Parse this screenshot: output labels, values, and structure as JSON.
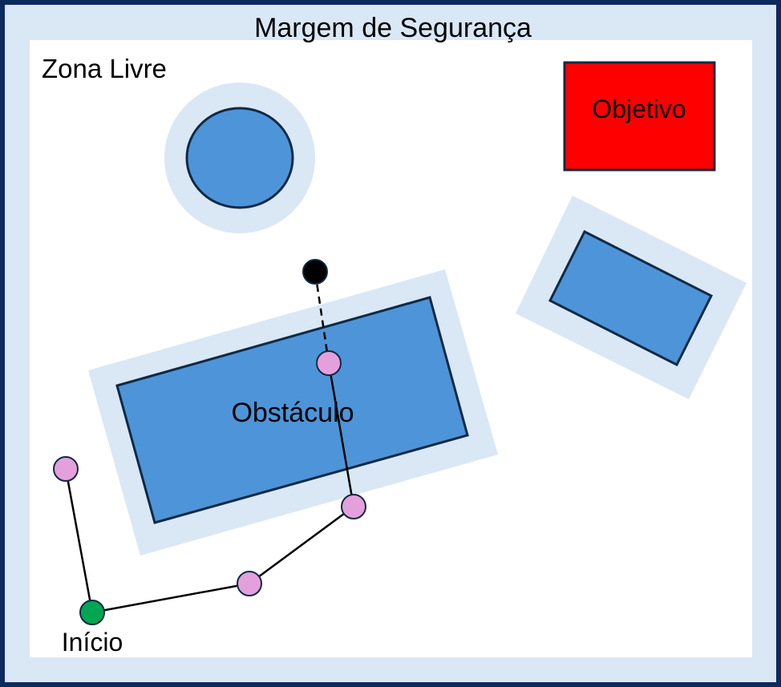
{
  "labels": {
    "safety_margin": "Margem de Segurança",
    "free_zone": "Zona Livre",
    "goal": "Objetivo",
    "obstacle": "Obstáculo",
    "start": "Início"
  },
  "colors": {
    "frame_border": "#0d2a5e",
    "safety_margin": "#dae7f5",
    "free_zone": "#ffffff",
    "obstacle_fill": "#4e94d8",
    "obstacle_stroke": "#0f2a44",
    "goal_fill": "#ff0000",
    "start_node": "#00a650",
    "tree_node": "#e4a0dc",
    "sample_node": "#000000",
    "edge": "#000000"
  }
}
